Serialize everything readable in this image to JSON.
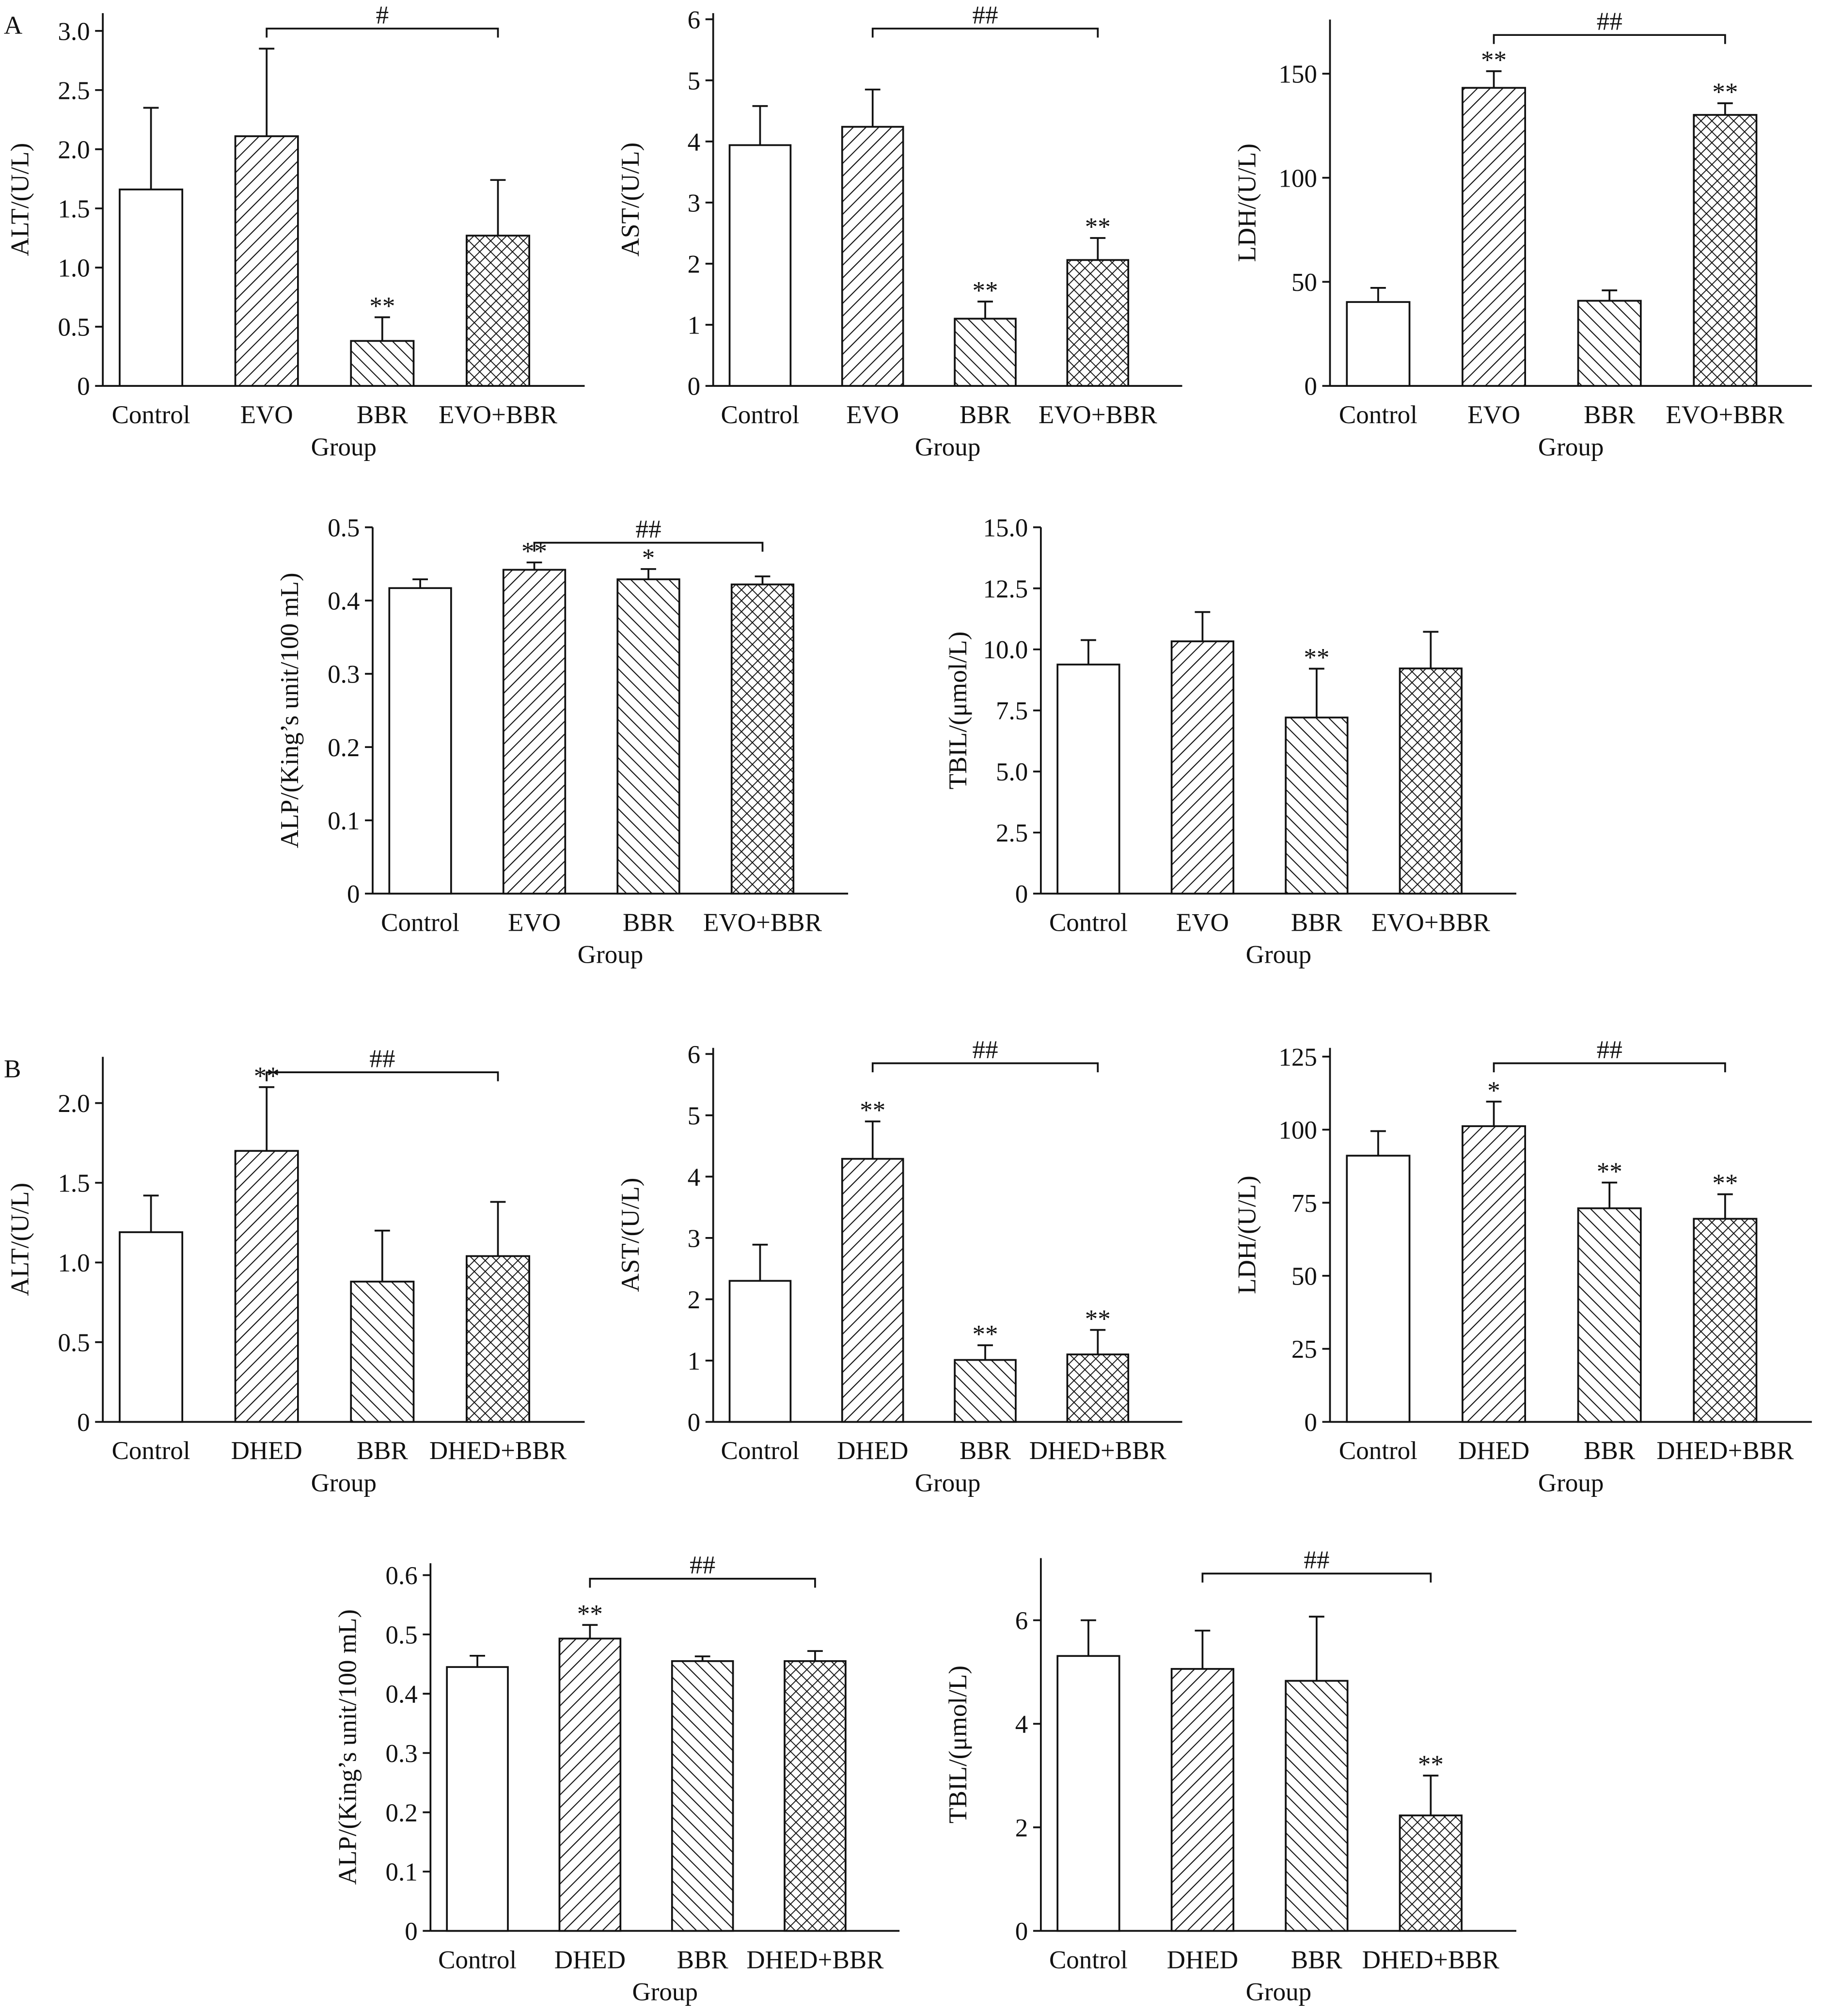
{
  "chart_data": [
    {
      "type": "bar",
      "panel": "A",
      "ylabel": "ALT/(U/L)",
      "xlabel": "Group",
      "categories": [
        "Control",
        "EVO",
        "BBR",
        "EVO+BBR"
      ],
      "values": [
        1.66,
        2.11,
        0.38,
        1.27
      ],
      "errors": [
        0.69,
        0.74,
        0.2,
        0.47
      ],
      "markers": [
        null,
        null,
        "**",
        null
      ],
      "hatches": [
        "none",
        "fwd",
        "back",
        "cross"
      ],
      "ylim": [
        0,
        3.15
      ],
      "yticks": [
        0,
        0.5,
        {
          "value": 1,
          "label": "1.0"
        },
        1.5,
        {
          "value": 2,
          "label": "2.0"
        },
        2.5,
        {
          "value": 3,
          "label": "3.0"
        }
      ],
      "comparison": {
        "from": 1,
        "to": 3,
        "label": "#"
      }
    },
    {
      "type": "bar",
      "ylabel": "AST/(U/L)",
      "xlabel": "Group",
      "categories": [
        "Control",
        "EVO",
        "BBR",
        "EVO+BBR"
      ],
      "values": [
        3.94,
        4.24,
        1.1,
        2.06
      ],
      "errors": [
        0.64,
        0.61,
        0.28,
        0.36
      ],
      "markers": [
        null,
        null,
        "**",
        "**"
      ],
      "hatches": [
        "none",
        "fwd",
        "back",
        "cross"
      ],
      "ylim": [
        0,
        6.1
      ],
      "yticks": [
        0,
        1,
        2,
        3,
        4,
        5,
        6
      ],
      "comparison": {
        "from": 1,
        "to": 3,
        "label": "##"
      }
    },
    {
      "type": "bar",
      "ylabel": "LDH/(U/L)",
      "xlabel": "Group",
      "categories": [
        "Control",
        "EVO",
        "BBR",
        "EVO+BBR"
      ],
      "values": [
        40.3,
        143.2,
        40.9,
        130.2
      ],
      "errors": [
        6.8,
        8,
        5,
        5.6
      ],
      "markers": [
        null,
        "**",
        null,
        "**"
      ],
      "hatches": [
        "none",
        "fwd",
        "back",
        "cross"
      ],
      "ylim": [
        0,
        176
      ],
      "yticks": [
        0,
        50,
        100,
        150
      ],
      "comparison": {
        "from": 1,
        "to": 3,
        "label": "##"
      }
    },
    {
      "type": "bar",
      "ylabel": "ALP/(King’s unit/100 mL)",
      "xlabel": "Group",
      "categories": [
        "Control",
        "EVO",
        "BBR",
        "EVO+BBR"
      ],
      "values": [
        0.417,
        0.442,
        0.429,
        0.422
      ],
      "errors": [
        0.012,
        0.01,
        0.014,
        0.011
      ],
      "markers": [
        null,
        "**",
        "*",
        null
      ],
      "hatches": [
        "none",
        "fwd",
        "back",
        "cross"
      ],
      "ylim": [
        0,
        0.5
      ],
      "yticks": [
        0,
        0.1,
        0.2,
        0.3,
        0.4,
        0.5
      ],
      "comparison": {
        "from": 1,
        "to": 3,
        "label": "##"
      }
    },
    {
      "type": "bar",
      "ylabel": "TBIL/(μmol/L)",
      "xlabel": "Group",
      "categories": [
        "Control",
        "EVO",
        "BBR",
        "EVO+BBR"
      ],
      "values": [
        9.38,
        10.33,
        7.21,
        9.22
      ],
      "errors": [
        1,
        1.2,
        2,
        1.5
      ],
      "markers": [
        null,
        null,
        "**",
        null
      ],
      "hatches": [
        "none",
        "fwd",
        "back",
        "cross"
      ],
      "ylim": [
        0,
        15
      ],
      "yticks": [
        0,
        2.5,
        {
          "value": 5,
          "label": "5.0"
        },
        7.5,
        {
          "value": 10,
          "label": "10.0"
        },
        12.5,
        {
          "value": 15,
          "label": "15.0"
        }
      ]
    },
    {
      "type": "bar",
      "panel": "B",
      "ylabel": "ALT/(U/L)",
      "xlabel": "Group",
      "categories": [
        "Control",
        "DHED",
        "BBR",
        "DHED+BBR"
      ],
      "values": [
        1.19,
        1.7,
        0.88,
        1.04
      ],
      "errors": [
        0.23,
        0.4,
        0.32,
        0.34
      ],
      "markers": [
        null,
        "**",
        null,
        null
      ],
      "hatches": [
        "none",
        "fwd",
        "back",
        "cross"
      ],
      "ylim": [
        0,
        2.29
      ],
      "yticks": [
        0,
        0.5,
        {
          "value": 1,
          "label": "1.0"
        },
        1.5,
        {
          "value": 2,
          "label": "2.0"
        }
      ],
      "comparison": {
        "from": 1,
        "to": 3,
        "label": "##"
      }
    },
    {
      "type": "bar",
      "ylabel": "AST/(U/L)",
      "xlabel": "Group",
      "categories": [
        "Control",
        "DHED",
        "BBR",
        "DHED+BBR"
      ],
      "values": [
        2.3,
        4.29,
        1.01,
        1.1
      ],
      "errors": [
        0.59,
        0.61,
        0.24,
        0.4
      ],
      "markers": [
        null,
        "**",
        "**",
        "**"
      ],
      "hatches": [
        "none",
        "fwd",
        "back",
        "cross"
      ],
      "ylim": [
        0,
        6.1
      ],
      "yticks": [
        0,
        1,
        2,
        3,
        4,
        5,
        6
      ],
      "comparison": {
        "from": 1,
        "to": 3,
        "label": "##"
      }
    },
    {
      "type": "bar",
      "ylabel": "LDH/(U/L)",
      "xlabel": "Group",
      "categories": [
        "Control",
        "DHED",
        "BBR",
        "DHED+BBR"
      ],
      "values": [
        91.1,
        101.2,
        73.1,
        69.5
      ],
      "errors": [
        8.4,
        8.4,
        8.8,
        8.4
      ],
      "markers": [
        null,
        "*",
        "**",
        "**"
      ],
      "hatches": [
        "none",
        "fwd",
        "back",
        "cross"
      ],
      "ylim": [
        0,
        128
      ],
      "yticks": [
        0,
        25,
        50,
        75,
        100,
        125
      ],
      "comparison": {
        "from": 1,
        "to": 3,
        "label": "##"
      }
    },
    {
      "type": "bar",
      "ylabel": "ALP/(King’s unit/100 mL)",
      "xlabel": "Group",
      "categories": [
        "Control",
        "DHED",
        "BBR",
        "DHED+BBR"
      ],
      "values": [
        0.445,
        0.493,
        0.455,
        0.455
      ],
      "errors": [
        0.019,
        0.023,
        0.008,
        0.017
      ],
      "markers": [
        null,
        "**",
        null,
        null
      ],
      "hatches": [
        "none",
        "fwd",
        "back",
        "cross"
      ],
      "ylim": [
        0,
        0.62
      ],
      "yticks": [
        0,
        0.1,
        0.2,
        0.3,
        0.4,
        0.5,
        0.6
      ],
      "comparison": {
        "from": 1,
        "to": 3,
        "label": "##"
      }
    },
    {
      "type": "bar",
      "ylabel": "TBIL/(μmol/L)",
      "xlabel": "Group",
      "categories": [
        "Control",
        "DHED",
        "BBR",
        "DHED+BBR"
      ],
      "values": [
        5.31,
        5.06,
        4.83,
        2.23
      ],
      "errors": [
        0.69,
        0.74,
        1.24,
        0.77
      ],
      "markers": [
        null,
        null,
        null,
        "**"
      ],
      "hatches": [
        "none",
        "fwd",
        "back",
        "cross"
      ],
      "ylim": [
        0,
        7.2
      ],
      "yticks": [
        0,
        2,
        4,
        6
      ],
      "comparison": {
        "from": 1,
        "to": 3,
        "label": "##"
      }
    }
  ]
}
